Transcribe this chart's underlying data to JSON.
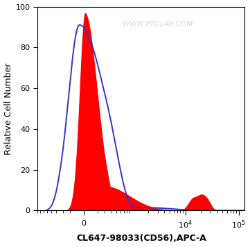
{
  "title": "",
  "xlabel": "CL647-98033(CD56),APC-A",
  "ylabel": "Relative Cell Number",
  "watermark": "WWW.PTGLAB.COM",
  "ylim": [
    0,
    100
  ],
  "yticks": [
    0,
    20,
    40,
    60,
    80,
    100
  ],
  "bg_color": "#ffffff",
  "plot_bg_color": "#ffffff",
  "red_color": "#ff0000",
  "blue_color": "#3333cc",
  "watermark_color": "#d0d0d0",
  "xlabel_fontsize": 9,
  "ylabel_fontsize": 9,
  "tick_fontsize": 8,
  "linthresh": 300,
  "linscale": 0.35
}
